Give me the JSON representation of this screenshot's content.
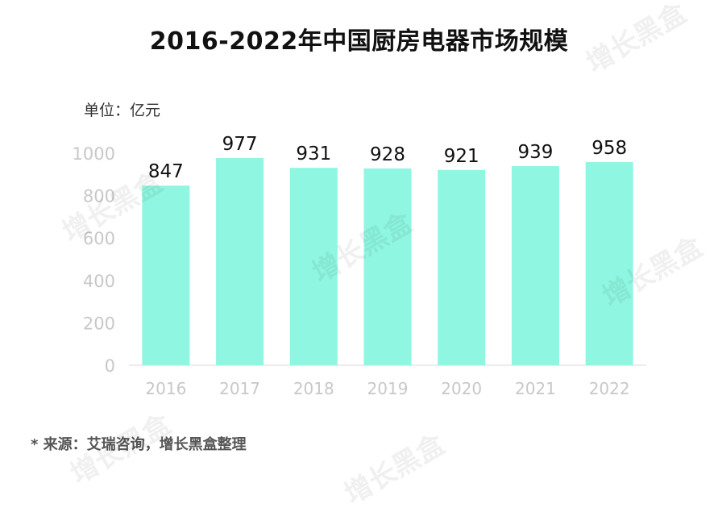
{
  "title": "2016-2022年中国厨房电器市场规模",
  "unit_label": "单位：亿元",
  "source": "* 来源：艾瑞咨询，增长黑盒整理",
  "watermark": "增长黑盒",
  "colors": {
    "bar": "#8ff6e1",
    "axis_tick": "#c8c8c8",
    "value_label": "#111111",
    "baseline": "#d9d9d9"
  },
  "chart_data": {
    "type": "bar",
    "title": "2016-2022年中国厨房电器市场规模",
    "xlabel": "",
    "ylabel": "单位：亿元",
    "categories": [
      "2016",
      "2017",
      "2018",
      "2019",
      "2020",
      "2021",
      "2022"
    ],
    "values": [
      847,
      977,
      931,
      928,
      921,
      939,
      958
    ],
    "ylim": [
      0,
      1000
    ],
    "yticks": [
      0,
      200,
      400,
      600,
      800,
      1000
    ],
    "grid": false,
    "legend": "none"
  }
}
